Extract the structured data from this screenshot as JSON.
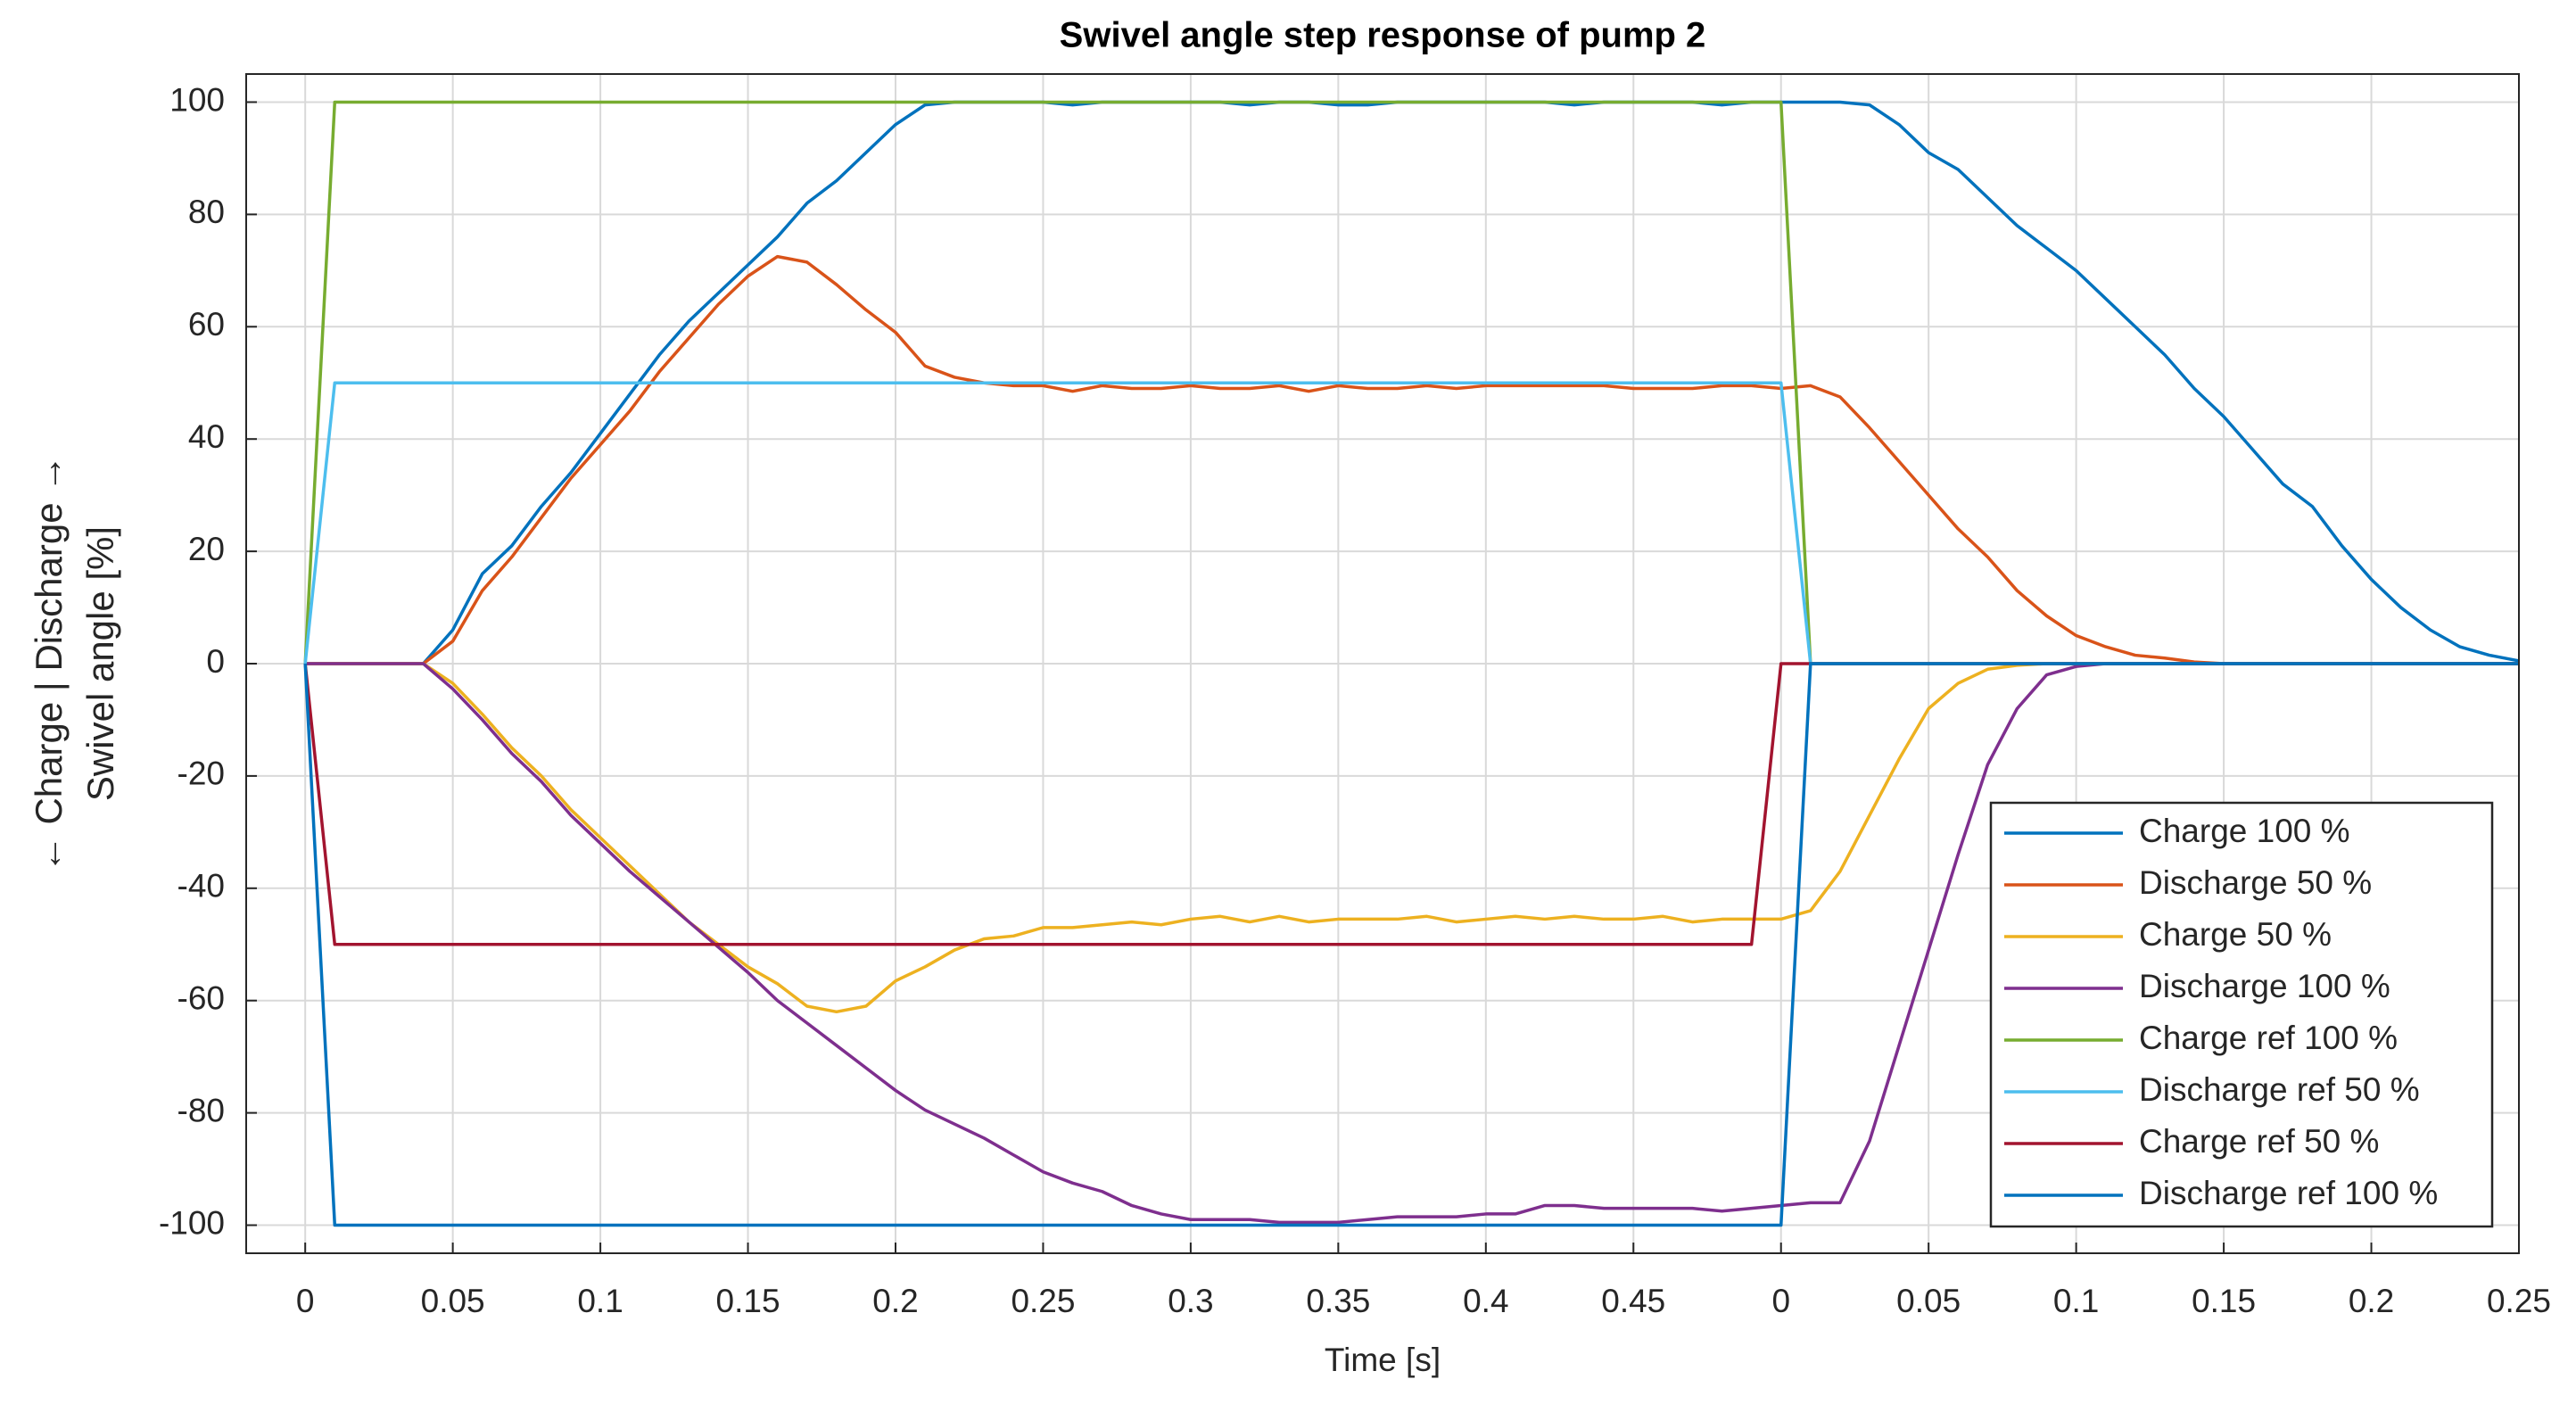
{
  "chart_data": {
    "type": "line",
    "title": "Swivel angle step response of pump 2",
    "xlabel": "Time [s]",
    "ylabel": [
      "← Charge | Discharge →",
      "Swivel angle [%]"
    ],
    "xlim": [
      -0.02,
      0.75
    ],
    "ylim": [
      -105,
      105
    ],
    "xticks": [
      0,
      0.05,
      0.1,
      0.15,
      0.2,
      0.25,
      0.3,
      0.35,
      0.4,
      0.45,
      {
        "value": 0.5,
        "label": "0"
      },
      {
        "value": 0.55,
        "label": "0.05"
      },
      {
        "value": 0.6,
        "label": "0.1"
      },
      {
        "value": 0.65,
        "label": "0.15"
      },
      {
        "value": 0.7,
        "label": "0.2"
      },
      {
        "value": 0.75,
        "label": "0.25"
      }
    ],
    "yticks": [
      -100,
      -80,
      -60,
      -40,
      -20,
      0,
      20,
      40,
      60,
      80,
      100
    ],
    "grid": true,
    "legend_position": "southeast",
    "x": [
      0,
      0.01,
      0.02,
      0.03,
      0.04,
      0.05,
      0.06,
      0.07,
      0.08,
      0.09,
      0.1,
      0.11,
      0.12,
      0.13,
      0.14,
      0.15,
      0.16,
      0.17,
      0.18,
      0.19,
      0.2,
      0.21,
      0.22,
      0.23,
      0.24,
      0.25,
      0.26,
      0.27,
      0.28,
      0.29,
      0.3,
      0.31,
      0.32,
      0.33,
      0.34,
      0.35,
      0.36,
      0.37,
      0.38,
      0.39,
      0.4,
      0.41,
      0.42,
      0.43,
      0.44,
      0.45,
      0.46,
      0.47,
      0.48,
      0.49,
      0.5,
      0.51,
      0.52,
      0.53,
      0.54,
      0.55,
      0.56,
      0.57,
      0.58,
      0.59,
      0.6,
      0.61,
      0.62,
      0.63,
      0.64,
      0.65,
      0.66,
      0.67,
      0.68,
      0.69,
      0.7,
      0.71,
      0.72,
      0.73,
      0.74,
      0.75
    ],
    "series": [
      {
        "name": "Charge 100 %",
        "color": "#0072bd",
        "values": [
          0,
          0,
          0,
          0,
          0,
          6,
          16,
          21,
          28,
          34,
          41,
          48,
          55,
          61,
          66,
          71,
          76,
          82,
          86,
          91,
          96,
          99.5,
          100,
          100,
          100,
          100,
          99.5,
          100,
          100,
          100,
          100,
          100,
          99.5,
          100,
          100,
          99.5,
          99.5,
          100,
          100,
          100,
          100,
          100,
          100,
          99.5,
          100,
          100,
          100,
          100,
          99.5,
          100,
          100,
          100,
          100,
          99.5,
          96,
          91,
          88,
          83,
          78,
          74,
          70,
          65,
          60,
          55,
          49,
          44,
          38,
          32,
          28,
          21,
          15,
          10,
          6,
          3,
          1.5,
          0.5
        ]
      },
      {
        "name": "Discharge 50 %",
        "color": "#d95319",
        "values": [
          0,
          0,
          0,
          0,
          0,
          4,
          13,
          19,
          26,
          33,
          39,
          45,
          52,
          58,
          64,
          69,
          72.5,
          71.5,
          67.5,
          63,
          59,
          53,
          51,
          50,
          49.5,
          49.5,
          48.5,
          49.5,
          49,
          49,
          49.5,
          49,
          49,
          49.5,
          48.5,
          49.5,
          49,
          49,
          49.5,
          49,
          49.5,
          49.5,
          49.5,
          49.5,
          49.5,
          49,
          49,
          49,
          49.5,
          49.5,
          49,
          49.5,
          47.5,
          42,
          36,
          30,
          24,
          19,
          13,
          8.5,
          5,
          3,
          1.5,
          1,
          0.3,
          0,
          0,
          0,
          0,
          0,
          0,
          0,
          0,
          0,
          0,
          0
        ]
      },
      {
        "name": "Charge 50 %",
        "color": "#edb120",
        "values": [
          0,
          0,
          0,
          0,
          0,
          -3.5,
          -9,
          -15,
          -20,
          -26,
          -31,
          -36,
          -41,
          -46,
          -50,
          -54,
          -57,
          -61,
          -62,
          -61,
          -56.5,
          -54,
          -51,
          -49,
          -48.5,
          -47,
          -47,
          -46.5,
          -46,
          -46.5,
          -45.5,
          -45,
          -46,
          -45,
          -46,
          -45.5,
          -45.5,
          -45.5,
          -45,
          -46,
          -45.5,
          -45,
          -45.5,
          -45,
          -45.5,
          -45.5,
          -45,
          -46,
          -45.5,
          -45.5,
          -45.5,
          -44,
          -37,
          -27,
          -17,
          -8,
          -3.5,
          -1,
          -0.3,
          0,
          0,
          0,
          0,
          0,
          0,
          0,
          0,
          0,
          0,
          0,
          0,
          0,
          0,
          0,
          0,
          0
        ]
      },
      {
        "name": "Discharge 100 %",
        "color": "#7e2f8e",
        "values": [
          0,
          0,
          0,
          0,
          0,
          -4.5,
          -10,
          -16,
          -21,
          -27,
          -32,
          -37,
          -41.5,
          -46,
          -50.5,
          -55,
          -60,
          -64,
          -68,
          -72,
          -76,
          -79.5,
          -82,
          -84.5,
          -87.5,
          -90.5,
          -92.5,
          -94,
          -96.5,
          -98,
          -99,
          -99,
          -99,
          -99.5,
          -99.5,
          -99.5,
          -99,
          -98.5,
          -98.5,
          -98.5,
          -98,
          -98,
          -96.5,
          -96.5,
          -97,
          -97,
          -97,
          -97,
          -97.5,
          -97,
          -96.5,
          -96,
          -96,
          -85,
          -68,
          -51,
          -34,
          -18,
          -8,
          -2,
          -0.5,
          0,
          0,
          0,
          0,
          0,
          0,
          0,
          0,
          0,
          0,
          0,
          0,
          0,
          0,
          0
        ]
      },
      {
        "name": "Charge ref 100 %",
        "color": "#77ac30",
        "x": [
          0,
          0.01,
          0.5,
          0.51,
          0.75
        ],
        "values": [
          0,
          100,
          100,
          0,
          0
        ]
      },
      {
        "name": "Discharge ref 50 %",
        "color": "#4dbeee",
        "x": [
          0,
          0.01,
          0.5,
          0.51,
          0.75
        ],
        "values": [
          0,
          50,
          50,
          0,
          0
        ]
      },
      {
        "name": "Charge ref 50 %",
        "color": "#a2142f",
        "x": [
          0,
          0.01,
          0.49,
          0.5,
          0.75
        ],
        "values": [
          0,
          -50,
          -50,
          0,
          0
        ]
      },
      {
        "name": "Discharge ref 100 %",
        "color": "#0072bd",
        "x": [
          0,
          0.01,
          0.5,
          0.51,
          0.75
        ],
        "values": [
          0,
          -100,
          -100,
          0,
          0
        ]
      }
    ]
  }
}
